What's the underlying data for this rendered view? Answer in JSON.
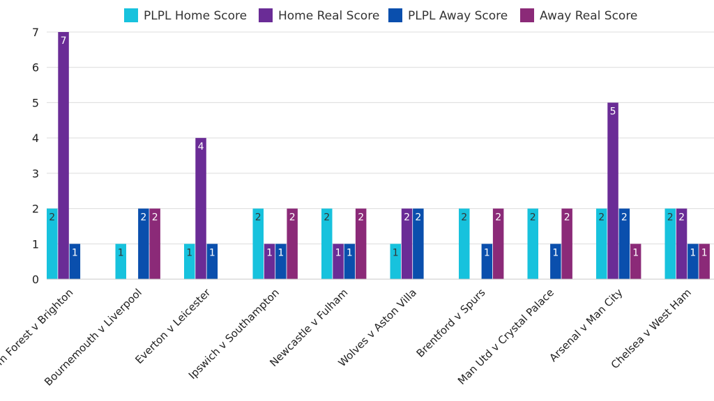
{
  "chart_data": {
    "type": "bar",
    "title": "",
    "xlabel": "",
    "ylabel": "",
    "ylim": [
      0,
      7
    ],
    "yticks": [
      0,
      1,
      2,
      3,
      4,
      5,
      6,
      7
    ],
    "grid": true,
    "legend_position": "top",
    "categories": [
      "Nottingham Forest v Brighton",
      "Bournemouth v Liverpool",
      "Everton v Leicester",
      "Ipswich v Southampton",
      "Newcastle v Fulham",
      "Wolves v Aston Villa",
      "Brentford v Spurs",
      "Man Utd v Crystal Palace",
      "Arsenal v Man City",
      "Chelsea v West Ham"
    ],
    "series": [
      {
        "name": "PLPL Home Score",
        "color": "#17c2dd",
        "label_color": "#333333",
        "values": [
          2,
          1,
          1,
          2,
          2,
          1,
          2,
          2,
          2,
          2
        ]
      },
      {
        "name": "Home Real Score",
        "color": "#6a2c96",
        "label_color": "#ffffff",
        "values": [
          7,
          0,
          4,
          1,
          1,
          2,
          0,
          0,
          5,
          2
        ]
      },
      {
        "name": "PLPL Away Score",
        "color": "#0a4fad",
        "label_color": "#ffffff",
        "values": [
          1,
          2,
          1,
          1,
          1,
          2,
          1,
          1,
          2,
          1
        ]
      },
      {
        "name": "Away Real Score",
        "color": "#8b2a78",
        "label_color": "#ffffff",
        "values": [
          0,
          2,
          0,
          2,
          2,
          0,
          2,
          2,
          1,
          1
        ]
      }
    ]
  }
}
